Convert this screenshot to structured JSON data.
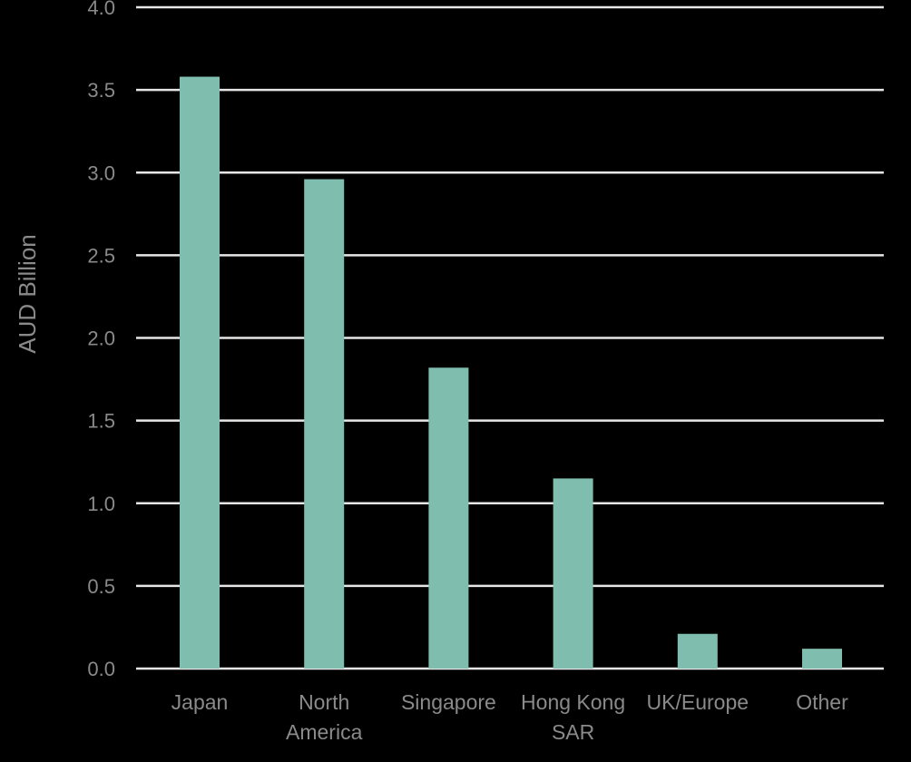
{
  "chart_data": {
    "type": "bar",
    "title": "",
    "xlabel": "",
    "ylabel": "AUD Billion",
    "ylim": [
      0,
      4.0
    ],
    "yticks": [
      "0.0",
      "0.5",
      "1.0",
      "1.5",
      "2.0",
      "2.5",
      "3.0",
      "3.5",
      "4.0"
    ],
    "grid": true,
    "legend": "none",
    "categories": [
      [
        "Japan"
      ],
      [
        "North",
        "America"
      ],
      [
        "Singapore"
      ],
      [
        "Hong Kong",
        "SAR"
      ],
      [
        "UK/Europe"
      ],
      [
        "Other"
      ]
    ],
    "values": [
      3.58,
      2.96,
      1.82,
      1.15,
      0.21,
      0.12
    ],
    "colors": {
      "background": "#000000",
      "bar": "#7fbdaf",
      "grid": "#e6e6e6",
      "text": "#8a8a8a"
    }
  }
}
